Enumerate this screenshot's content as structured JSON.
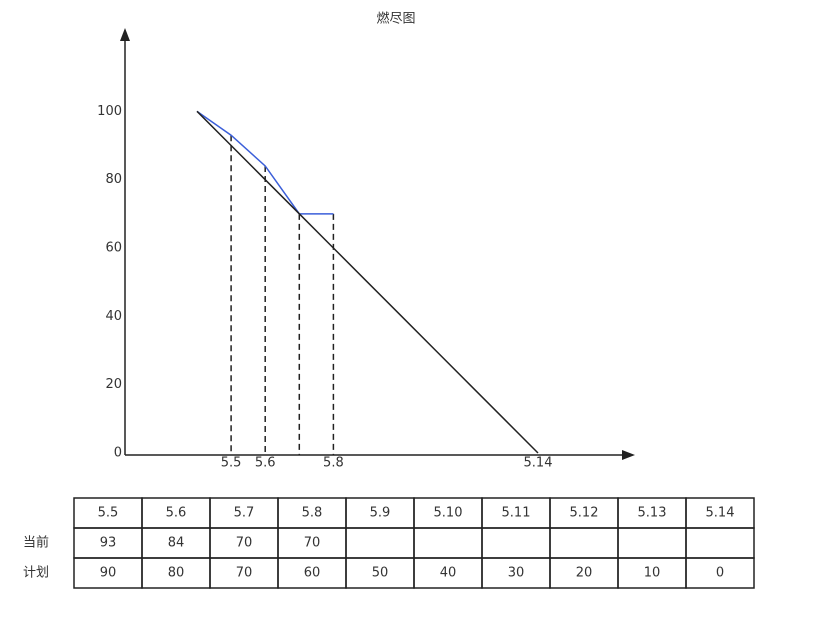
{
  "chart_data": {
    "type": "line",
    "title": "燃尽图",
    "categories": [
      null,
      "5.5",
      "5.6",
      null,
      "5.8",
      null,
      null,
      null,
      null,
      null,
      "5.14"
    ],
    "series": [
      {
        "color": "#3b5fd9",
        "values": [
          100,
          93,
          84,
          70,
          70,
          null,
          null,
          null,
          null,
          null,
          null
        ]
      },
      {
        "color": "#222222",
        "values": [
          100,
          90,
          80,
          70,
          60,
          50,
          40,
          30,
          20,
          10,
          0
        ]
      }
    ],
    "ylim": [
      0,
      120
    ],
    "yticks": [
      0,
      20,
      40,
      60,
      80,
      100
    ],
    "drop_lines": true
  },
  "table": {
    "columns": [
      "5.5",
      "5.6",
      "5.7",
      "5.8",
      "5.9",
      "5.10",
      "5.11",
      "5.12",
      "5.13",
      "5.14"
    ],
    "rows": [
      {
        "label": "当前",
        "cells": [
          93,
          84,
          70,
          70,
          null,
          null,
          null,
          null,
          null,
          null
        ]
      },
      {
        "label": "计划",
        "cells": [
          90,
          80,
          70,
          60,
          50,
          40,
          30,
          20,
          10,
          0
        ]
      }
    ]
  }
}
